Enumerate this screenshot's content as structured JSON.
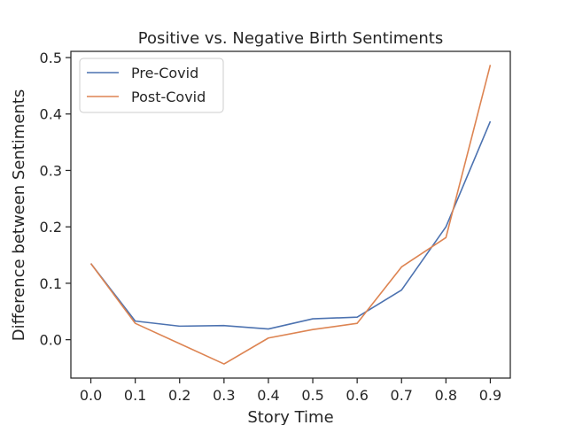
{
  "chart_data": {
    "type": "line",
    "title": "Positive vs. Negative Birth Sentiments",
    "xlabel": "Story Time",
    "ylabel": "Difference between Sentiments",
    "x": [
      0.0,
      0.1,
      0.2,
      0.3,
      0.4,
      0.5,
      0.6,
      0.7,
      0.8,
      0.9
    ],
    "x_ticks": [
      "0.0",
      "0.1",
      "0.2",
      "0.3",
      "0.4",
      "0.5",
      "0.6",
      "0.7",
      "0.8",
      "0.9"
    ],
    "y_ticks": [
      "0.0",
      "0.1",
      "0.2",
      "0.3",
      "0.4",
      "0.5"
    ],
    "xlim": [
      -0.045,
      0.945
    ],
    "ylim": [
      -0.068,
      0.511
    ],
    "grid": false,
    "legend_position": "top-left",
    "series": [
      {
        "name": "Pre-Covid",
        "color": "#4c72b0",
        "values": [
          0.135,
          0.033,
          0.024,
          0.025,
          0.019,
          0.037,
          0.04,
          0.088,
          0.2,
          0.387
        ]
      },
      {
        "name": "Post-Covid",
        "color": "#dd8452",
        "values": [
          0.135,
          0.029,
          -0.007,
          -0.043,
          0.003,
          0.018,
          0.029,
          0.129,
          0.181,
          0.487
        ]
      }
    ]
  }
}
